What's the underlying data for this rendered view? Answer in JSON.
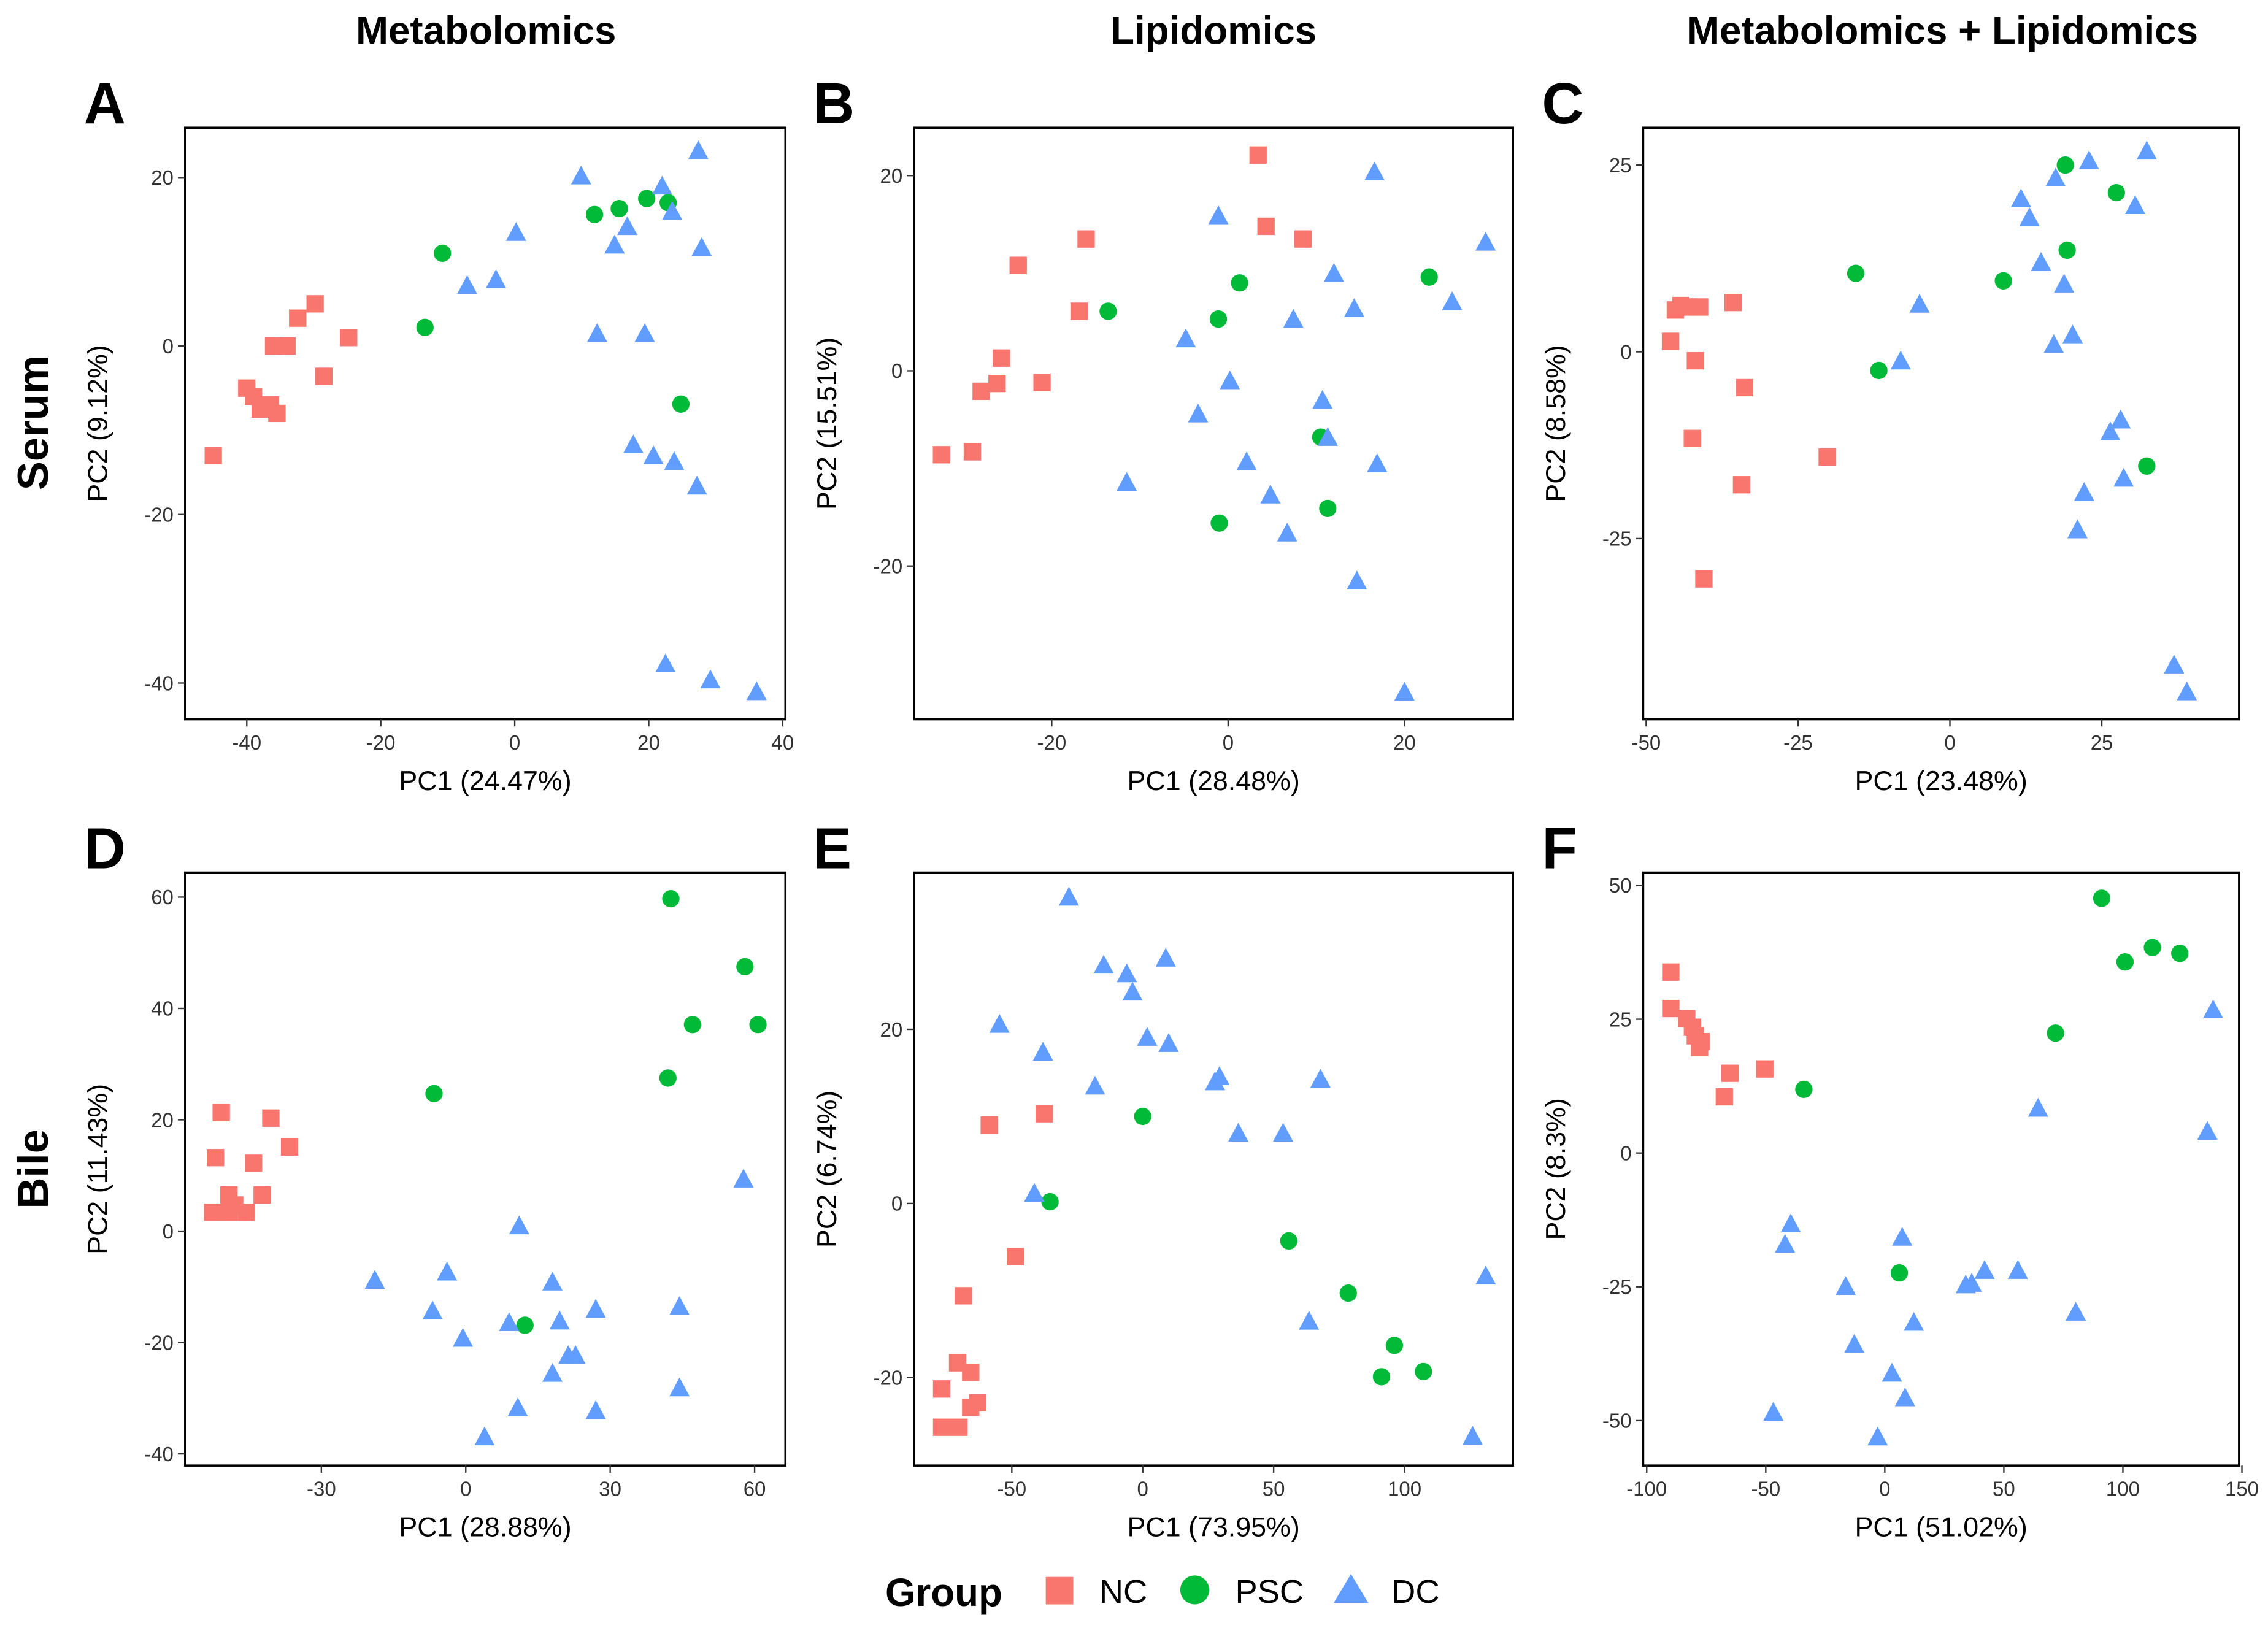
{
  "column_titles": [
    "Metabolomics",
    "Lipidomics",
    "Metabolomics + Lipidomics"
  ],
  "row_labels": [
    "Serum",
    "Bile"
  ],
  "colors": {
    "NC": "#F8766D",
    "PSC": "#00BA38",
    "DC": "#619CFF"
  },
  "legend": {
    "title": "Group",
    "items": [
      "NC",
      "PSC",
      "DC"
    ]
  },
  "chart_data": [
    {
      "type": "scatter",
      "panel": "A",
      "xlabel": "PC1 (24.47%)",
      "ylabel": "PC2 (9.12%)",
      "xlim": [
        -49.2,
        40.4
      ],
      "ylim": [
        -44.3,
        25.9
      ],
      "xticks": [
        -40,
        -20,
        0,
        20,
        40
      ],
      "yticks": [
        -40,
        -20,
        0,
        20
      ],
      "series": [
        {
          "name": "NC",
          "points": [
            [
              -45,
              -13
            ],
            [
              -40,
              -5
            ],
            [
              -39,
              -6
            ],
            [
              -38,
              -7.5
            ],
            [
              -36.5,
              -7
            ],
            [
              -35.5,
              -8
            ],
            [
              -36,
              0
            ],
            [
              -34,
              0
            ],
            [
              -32.4,
              3.3
            ],
            [
              -29.8,
              5
            ],
            [
              -28.5,
              -3.6
            ],
            [
              -24.8,
              1
            ]
          ]
        },
        {
          "name": "PSC",
          "points": [
            [
              -13.4,
              2.2
            ],
            [
              -10.8,
              11
            ],
            [
              11.9,
              15.6
            ],
            [
              15.6,
              16.3
            ],
            [
              19.7,
              17.5
            ],
            [
              22.9,
              17
            ],
            [
              24.8,
              -6.9
            ]
          ]
        },
        {
          "name": "DC",
          "points": [
            [
              -7.1,
              7.2
            ],
            [
              -2.8,
              7.9
            ],
            [
              0.2,
              13.5
            ],
            [
              9.9,
              20.2
            ],
            [
              12.3,
              1.5
            ],
            [
              14.9,
              12
            ],
            [
              16.8,
              14.2
            ],
            [
              19.4,
              1.5
            ],
            [
              22,
              19
            ],
            [
              23.5,
              16
            ],
            [
              27.4,
              23.2
            ],
            [
              27.9,
              11.7
            ],
            [
              17.7,
              -11.7
            ],
            [
              20.7,
              -13
            ],
            [
              23.8,
              -13.7
            ],
            [
              27.2,
              -16.6
            ],
            [
              22.5,
              -37.7
            ],
            [
              29.2,
              -39.6
            ],
            [
              36.1,
              -41
            ]
          ]
        }
      ]
    },
    {
      "type": "scatter",
      "panel": "B",
      "xlabel": "PC1 (28.48%)",
      "ylabel": "PC2 (15.51%)",
      "xlim": [
        -35.6,
        32.3
      ],
      "ylim": [
        -35.7,
        24.9
      ],
      "xticks": [
        -20,
        0,
        20
      ],
      "yticks": [
        -20,
        0,
        20
      ],
      "series": [
        {
          "name": "NC",
          "points": [
            [
              -32.5,
              -8.6
            ],
            [
              -29,
              -8.3
            ],
            [
              -28,
              -2.1
            ],
            [
              -26.2,
              -1.3
            ],
            [
              -25.7,
              1.3
            ],
            [
              -23.8,
              10.8
            ],
            [
              -21.1,
              -1.2
            ],
            [
              -16.9,
              6.1
            ],
            [
              -16.1,
              13.5
            ],
            [
              3.4,
              22.1
            ],
            [
              4.3,
              14.8
            ],
            [
              8.5,
              13.5
            ]
          ]
        },
        {
          "name": "PSC",
          "points": [
            [
              -13.6,
              6.1
            ],
            [
              -1.1,
              5.3
            ],
            [
              1.3,
              9
            ],
            [
              -1,
              -15.6
            ],
            [
              10.5,
              -6.8
            ],
            [
              11.3,
              -14.1
            ],
            [
              22.8,
              9.6
            ]
          ]
        },
        {
          "name": "DC",
          "points": [
            [
              -11.5,
              -11.4
            ],
            [
              -4.8,
              3.3
            ],
            [
              -3.4,
              -4.4
            ],
            [
              -1.1,
              15.9
            ],
            [
              0.2,
              -1
            ],
            [
              2.1,
              -9.3
            ],
            [
              4.8,
              -12.7
            ],
            [
              6.7,
              -16.6
            ],
            [
              7.4,
              5.3
            ],
            [
              10.7,
              -3
            ],
            [
              11.3,
              -6.8
            ],
            [
              12,
              10
            ],
            [
              14.3,
              6.4
            ],
            [
              14.6,
              -21.5
            ],
            [
              16.6,
              20.4
            ],
            [
              16.9,
              -9.5
            ],
            [
              25.4,
              7.1
            ],
            [
              29.2,
              13.2
            ],
            [
              20,
              -32.9
            ]
          ]
        }
      ]
    },
    {
      "type": "scatter",
      "panel": "C",
      "xlabel": "PC1 (23.48%)",
      "ylabel": "PC2 (8.58%)",
      "xlim": [
        -50.5,
        47.6
      ],
      "ylim": [
        -49.2,
        30
      ],
      "xticks": [
        -50,
        -25,
        0,
        25
      ],
      "yticks": [
        -25,
        0,
        25
      ],
      "series": [
        {
          "name": "NC",
          "points": [
            [
              -46,
              1.4
            ],
            [
              -45.2,
              5.6
            ],
            [
              -44.3,
              6.2
            ],
            [
              -43.1,
              6
            ],
            [
              -41.2,
              6
            ],
            [
              -41.9,
              -1.2
            ],
            [
              -42.4,
              -11.6
            ],
            [
              -35.7,
              6.6
            ],
            [
              -33.8,
              -4.8
            ],
            [
              -34.3,
              -17.8
            ],
            [
              -40.5,
              -30.4
            ],
            [
              -20.2,
              -14.1
            ]
          ]
        },
        {
          "name": "PSC",
          "points": [
            [
              -15.5,
              10.5
            ],
            [
              -11.7,
              -2.5
            ],
            [
              8.8,
              9.5
            ],
            [
              19,
              25
            ],
            [
              19.3,
              13.6
            ],
            [
              27.4,
              21.3
            ],
            [
              32.4,
              -15.3
            ]
          ]
        },
        {
          "name": "DC",
          "points": [
            [
              -8.1,
              -1.2
            ],
            [
              -5,
              6.4
            ],
            [
              11.7,
              20.5
            ],
            [
              13.1,
              18
            ],
            [
              15,
              12
            ],
            [
              17.1,
              1
            ],
            [
              17.4,
              23.3
            ],
            [
              18.8,
              9.1
            ],
            [
              20.2,
              2.3
            ],
            [
              22.9,
              25.6
            ],
            [
              30.5,
              19.6
            ],
            [
              32.4,
              26.9
            ],
            [
              26.4,
              -10.7
            ],
            [
              28.1,
              -9.1
            ],
            [
              28.6,
              -16.9
            ],
            [
              22.1,
              -18.8
            ],
            [
              21,
              -23.8
            ],
            [
              36.9,
              -41.9
            ],
            [
              39,
              -45.5
            ]
          ]
        }
      ]
    },
    {
      "type": "scatter",
      "panel": "D",
      "xlabel": "PC1 (28.88%)",
      "ylabel": "PC2 (11.43%)",
      "xlim": [
        -58.3,
        66.4
      ],
      "ylim": [
        -42.1,
        64.4
      ],
      "xticks": [
        -30,
        0,
        30,
        60
      ],
      "yticks": [
        -40,
        -20,
        0,
        20,
        40,
        60
      ],
      "series": [
        {
          "name": "NC",
          "points": [
            [
              -52.6,
              3.4
            ],
            [
              -52,
              13.2
            ],
            [
              -50.8,
              21.3
            ],
            [
              -49.2,
              6.5
            ],
            [
              -49.2,
              3.4
            ],
            [
              -48,
              4.7
            ],
            [
              -45.6,
              3.4
            ],
            [
              -44.1,
              12.2
            ],
            [
              -42.3,
              6.5
            ],
            [
              -40.5,
              20.3
            ],
            [
              -36.6,
              15.1
            ]
          ]
        },
        {
          "name": "PSC",
          "points": [
            [
              -6.6,
              24.7
            ],
            [
              12.3,
              -16.9
            ],
            [
              42,
              27.5
            ],
            [
              42.6,
              59.7
            ],
            [
              47.1,
              37.1
            ],
            [
              58,
              47.5
            ],
            [
              60.7,
              37.1
            ]
          ]
        },
        {
          "name": "DC",
          "points": [
            [
              -18.9,
              -8.8
            ],
            [
              -6.9,
              -14.3
            ],
            [
              -3.9,
              -7.3
            ],
            [
              -0.6,
              -19.2
            ],
            [
              3.9,
              -36.9
            ],
            [
              9,
              -16.4
            ],
            [
              10.8,
              -31.7
            ],
            [
              11.1,
              1
            ],
            [
              18,
              -9.1
            ],
            [
              18,
              -25.5
            ],
            [
              19.5,
              -16.1
            ],
            [
              21.3,
              -22.3
            ],
            [
              22.8,
              -22.3
            ],
            [
              27,
              -32.2
            ],
            [
              27,
              -14
            ],
            [
              44.4,
              -13.5
            ],
            [
              44.4,
              -28.1
            ],
            [
              57.7,
              9.4
            ]
          ]
        }
      ]
    },
    {
      "type": "scatter",
      "panel": "E",
      "xlabel": "PC1 (73.95%)",
      "ylabel": "PC2 (6.74%)",
      "xlim": [
        -87.3,
        141.4
      ],
      "ylim": [
        -30.1,
        38
      ],
      "xticks": [
        -50,
        0,
        50,
        100
      ],
      "yticks": [
        -20,
        0,
        20
      ],
      "series": [
        {
          "name": "NC",
          "points": [
            [
              -76.8,
              -25.7
            ],
            [
              -76.8,
              -21.3
            ],
            [
              -70.2,
              -25.7
            ],
            [
              -70.7,
              -18.3
            ],
            [
              -68.5,
              -10.6
            ],
            [
              -65.7,
              -19.4
            ],
            [
              -65.7,
              -23.4
            ],
            [
              -63,
              -22.9
            ],
            [
              -58.6,
              9
            ],
            [
              -48.6,
              -6.1
            ],
            [
              -37.6,
              10.3
            ]
          ]
        },
        {
          "name": "PSC",
          "points": [
            [
              -35.4,
              0.2
            ],
            [
              0,
              10
            ],
            [
              55.8,
              -4.3
            ],
            [
              78.5,
              -10.3
            ],
            [
              91.2,
              -19.9
            ],
            [
              96.1,
              -16.3
            ],
            [
              107.2,
              -19.3
            ]
          ]
        },
        {
          "name": "DC",
          "points": [
            [
              -54.7,
              20.6
            ],
            [
              -41.4,
              1.2
            ],
            [
              -38.1,
              17.4
            ],
            [
              -28.2,
              35.2
            ],
            [
              -18.2,
              13.5
            ],
            [
              -14.9,
              27.4
            ],
            [
              -6.1,
              26.4
            ],
            [
              -3.9,
              24.3
            ],
            [
              1.7,
              19.1
            ],
            [
              8.8,
              28.2
            ],
            [
              9.9,
              18.4
            ],
            [
              27.6,
              14
            ],
            [
              29.3,
              14.6
            ],
            [
              36.5,
              8.1
            ],
            [
              53.6,
              8.1
            ],
            [
              63.5,
              -13.5
            ],
            [
              67.9,
              14.3
            ],
            [
              126,
              -26.7
            ],
            [
              131,
              -8.3
            ]
          ]
        }
      ]
    },
    {
      "type": "scatter",
      "panel": "F",
      "xlabel": "PC1 (51.02%)",
      "ylabel": "PC2 (8.3%)",
      "xlim": [
        -101.5,
        148.8
      ],
      "ylim": [
        -58.4,
        52.4
      ],
      "xticks": [
        -100,
        -50,
        0,
        50,
        100,
        150
      ],
      "yticks": [
        -50,
        -25,
        0,
        25,
        50
      ],
      "series": [
        {
          "name": "NC",
          "points": [
            [
              -89.9,
              33.8
            ],
            [
              -89.9,
              27
            ],
            [
              -83.2,
              25.1
            ],
            [
              -80.8,
              23.5
            ],
            [
              -79.6,
              21.9
            ],
            [
              -77.2,
              20.8
            ],
            [
              -77.8,
              19.7
            ],
            [
              -67.4,
              10.5
            ],
            [
              -65,
              14.9
            ],
            [
              -50.4,
              15.7
            ]
          ]
        },
        {
          "name": "PSC",
          "points": [
            [
              -34,
              11.9
            ],
            [
              6.1,
              -22.4
            ],
            [
              71.7,
              22.4
            ],
            [
              91.1,
              47.6
            ],
            [
              100.9,
              35.7
            ],
            [
              112.4,
              38.4
            ],
            [
              123.9,
              37.3
            ]
          ]
        },
        {
          "name": "DC",
          "points": [
            [
              -46.8,
              -48.4
            ],
            [
              -41.9,
              -17
            ],
            [
              -39.5,
              -13.2
            ],
            [
              -16.4,
              -24.9
            ],
            [
              -12.8,
              -35.7
            ],
            [
              -3,
              -53
            ],
            [
              3,
              -41.1
            ],
            [
              8.5,
              -45.7
            ],
            [
              7.3,
              -15.7
            ],
            [
              12.2,
              -31.6
            ],
            [
              34,
              -24.6
            ],
            [
              36.5,
              -24.3
            ],
            [
              41.9,
              -21.9
            ],
            [
              55.9,
              -21.9
            ],
            [
              64.4,
              8.4
            ],
            [
              80.2,
              -29.7
            ],
            [
              135.5,
              4.1
            ],
            [
              137.9,
              26.8
            ]
          ]
        }
      ]
    }
  ]
}
